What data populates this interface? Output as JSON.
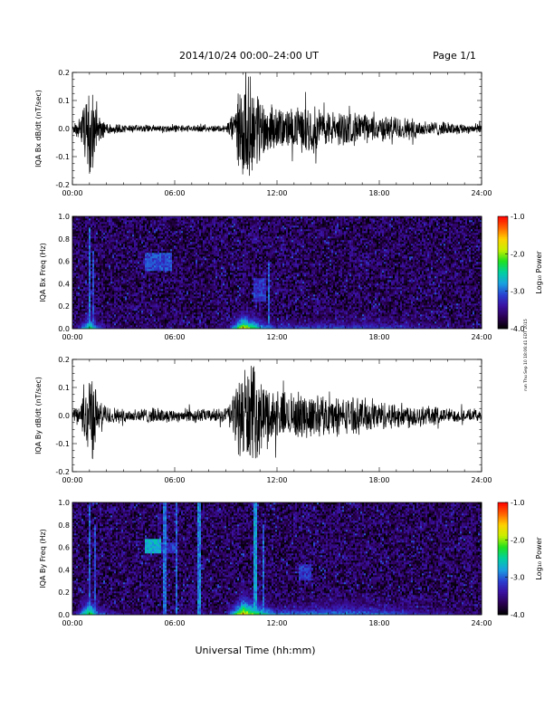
{
  "header": {
    "title": "2014/10/24   00:00–24:00 UT",
    "page": "Page 1/1"
  },
  "footer": {
    "xlabel": "Universal Time (hh:mm)",
    "side_stamp": "run Thu Sep 10 18:06:41 EDT 2015"
  },
  "colors": {
    "waveform": "#000000",
    "spectrogram_scale": [
      "#000000",
      "#2a0050",
      "#3a10a0",
      "#2a40d0",
      "#1aa0e0",
      "#00d0a0",
      "#20e020",
      "#c8f000",
      "#ffd000",
      "#ff6000",
      "#ff0000"
    ]
  },
  "chart_data": [
    {
      "type": "line",
      "panel": "IQA Bx dB/dt",
      "ylabel": "IQA Bx dB/dt (nT/sec)",
      "xlabel": "",
      "x_ticks": [
        "00:00",
        "06:00",
        "12:00",
        "18:00",
        "24:00"
      ],
      "y_ticks": [
        "-0.2",
        "-0.1",
        "0.0",
        "0.1",
        "0.2"
      ],
      "xlim": [
        0,
        24
      ],
      "ylim": [
        -0.2,
        0.2
      ],
      "grid": false,
      "envelope": {
        "hours": [
          0,
          0.5,
          1.0,
          1.25,
          1.5,
          2.0,
          3,
          4,
          5,
          6,
          7,
          8,
          9,
          9.5,
          10,
          10.5,
          11,
          11.5,
          12,
          13,
          14,
          15,
          16,
          17,
          18,
          19,
          20,
          21,
          22,
          23,
          24
        ],
        "amplitude": [
          0.015,
          0.05,
          0.2,
          0.15,
          0.05,
          0.03,
          0.015,
          0.015,
          0.015,
          0.015,
          0.013,
          0.013,
          0.015,
          0.08,
          0.2,
          0.2,
          0.14,
          0.1,
          0.08,
          0.08,
          0.1,
          0.07,
          0.07,
          0.06,
          0.05,
          0.05,
          0.04,
          0.03,
          0.025,
          0.02,
          0.02
        ]
      }
    },
    {
      "type": "heatmap",
      "panel": "IQA Bx Freq",
      "ylabel": "IQA Bx Freq (Hz)",
      "colorbar_label": "Log₁₀ Power",
      "colorbar_ticks": [
        "-1.0",
        "-2.0",
        "-3.0",
        "-4.0"
      ],
      "colorbar_range": [
        -4.0,
        -1.0
      ],
      "x_ticks": [
        "00:00",
        "06:00",
        "12:00",
        "18:00",
        "24:00"
      ],
      "y_ticks": [
        "0.0",
        "0.2",
        "0.4",
        "0.6",
        "0.8",
        "1.0"
      ],
      "xlim": [
        0,
        24
      ],
      "ylim": [
        0,
        1.0
      ],
      "low_freq_activity": {
        "hours": [
          0,
          1,
          1.5,
          3,
          6,
          9,
          10,
          11,
          12,
          14,
          16,
          18,
          20,
          22,
          24
        ],
        "height_hz": [
          0.02,
          0.12,
          0.06,
          0.03,
          0.02,
          0.03,
          0.1,
          0.08,
          0.05,
          0.06,
          0.08,
          0.07,
          0.06,
          0.04,
          0.02
        ],
        "level": [
          -3.8,
          -2.2,
          -3.0,
          -3.6,
          -3.7,
          -3.5,
          -1.5,
          -2.5,
          -3.0,
          -3.0,
          -3.0,
          -3.0,
          -3.2,
          -3.4,
          -3.8
        ]
      },
      "features": [
        {
          "hour_start": 4.2,
          "hour_end": 5.8,
          "freq_low": 0.52,
          "freq_high": 0.68,
          "level": -3.1,
          "kind": "patch"
        },
        {
          "hour_start": 1.0,
          "hour_end": 1.05,
          "freq_low": 0.0,
          "freq_high": 0.9,
          "level": -3.0,
          "kind": "vertical"
        },
        {
          "hour_start": 1.2,
          "hour_end": 1.24,
          "freq_low": 0.0,
          "freq_high": 0.7,
          "level": -3.1,
          "kind": "vertical"
        },
        {
          "hour_start": 11.5,
          "hour_end": 11.55,
          "freq_low": 0.0,
          "freq_high": 0.6,
          "level": -3.0,
          "kind": "vertical"
        },
        {
          "hour_start": 10.6,
          "hour_end": 11.4,
          "freq_low": 0.25,
          "freq_high": 0.45,
          "level": -3.2,
          "kind": "patch"
        }
      ]
    },
    {
      "type": "line",
      "panel": "IQA By dB/dt",
      "ylabel": "IQA By dB/dt (nT/sec)",
      "xlabel": "",
      "x_ticks": [
        "00:00",
        "06:00",
        "12:00",
        "18:00",
        "24:00"
      ],
      "y_ticks": [
        "-0.2",
        "-0.1",
        "0.0",
        "0.1",
        "0.2"
      ],
      "xlim": [
        0,
        24
      ],
      "ylim": [
        -0.2,
        0.2
      ],
      "grid": false,
      "envelope": {
        "hours": [
          0,
          0.5,
          1.0,
          1.25,
          1.5,
          2.0,
          3,
          4,
          5,
          6,
          7,
          8,
          9,
          9.5,
          10,
          10.5,
          11,
          11.5,
          12,
          13,
          14,
          15,
          16,
          17,
          18,
          19,
          20,
          21,
          22,
          23,
          24
        ],
        "amplitude": [
          0.02,
          0.05,
          0.2,
          0.16,
          0.06,
          0.04,
          0.025,
          0.03,
          0.03,
          0.025,
          0.03,
          0.025,
          0.03,
          0.1,
          0.2,
          0.2,
          0.15,
          0.12,
          0.1,
          0.09,
          0.09,
          0.08,
          0.07,
          0.07,
          0.06,
          0.05,
          0.05,
          0.04,
          0.03,
          0.025,
          0.02
        ]
      }
    },
    {
      "type": "heatmap",
      "panel": "IQA By Freq",
      "ylabel": "IQA By Freq (Hz)",
      "colorbar_label": "Log₁₀ Power",
      "colorbar_ticks": [
        "-1.0",
        "-2.0",
        "-3.0",
        "-4.0"
      ],
      "colorbar_range": [
        -4.0,
        -1.0
      ],
      "x_ticks": [
        "00:00",
        "06:00",
        "12:00",
        "18:00",
        "24:00"
      ],
      "y_ticks": [
        "0.0",
        "0.2",
        "0.4",
        "0.6",
        "0.8",
        "1.0"
      ],
      "xlim": [
        0,
        24
      ],
      "ylim": [
        0,
        1.0
      ],
      "low_freq_activity": {
        "hours": [
          0,
          1,
          1.5,
          3,
          6,
          9,
          10,
          11,
          12,
          14,
          16,
          18,
          20,
          22,
          24
        ],
        "height_hz": [
          0.03,
          0.14,
          0.07,
          0.04,
          0.03,
          0.04,
          0.12,
          0.1,
          0.07,
          0.08,
          0.1,
          0.09,
          0.07,
          0.05,
          0.03
        ],
        "level": [
          -3.6,
          -2.0,
          -2.8,
          -3.4,
          -3.5,
          -3.3,
          -1.4,
          -2.3,
          -2.8,
          -2.8,
          -2.8,
          -2.9,
          -3.1,
          -3.3,
          -3.7
        ]
      },
      "features": [
        {
          "hour_start": 4.3,
          "hour_end": 5.2,
          "freq_low": 0.55,
          "freq_high": 0.68,
          "level": -2.7,
          "kind": "patch"
        },
        {
          "hour_start": 5.2,
          "hour_end": 6.2,
          "freq_low": 0.55,
          "freq_high": 0.65,
          "level": -3.2,
          "kind": "patch"
        },
        {
          "hour_start": 1.0,
          "hour_end": 1.05,
          "freq_low": 0.0,
          "freq_high": 1.0,
          "level": -3.0,
          "kind": "vertical"
        },
        {
          "hour_start": 1.3,
          "hour_end": 1.34,
          "freq_low": 0.0,
          "freq_high": 0.8,
          "level": -3.1,
          "kind": "vertical"
        },
        {
          "hour_start": 5.4,
          "hour_end": 5.44,
          "freq_low": 0.0,
          "freq_high": 1.0,
          "level": -3.0,
          "kind": "vertical"
        },
        {
          "hour_start": 6.1,
          "hour_end": 6.14,
          "freq_low": 0.0,
          "freq_high": 1.0,
          "level": -3.0,
          "kind": "vertical"
        },
        {
          "hour_start": 7.4,
          "hour_end": 7.44,
          "freq_low": 0.0,
          "freq_high": 1.0,
          "level": -2.9,
          "kind": "vertical"
        },
        {
          "hour_start": 10.7,
          "hour_end": 10.75,
          "freq_low": 0.0,
          "freq_high": 1.0,
          "level": -2.8,
          "kind": "vertical"
        },
        {
          "hour_start": 11.2,
          "hour_end": 11.25,
          "freq_low": 0.0,
          "freq_high": 0.8,
          "level": -3.0,
          "kind": "vertical"
        },
        {
          "hour_start": 13.3,
          "hour_end": 14.0,
          "freq_low": 0.3,
          "freq_high": 0.45,
          "level": -3.2,
          "kind": "patch"
        }
      ]
    }
  ]
}
